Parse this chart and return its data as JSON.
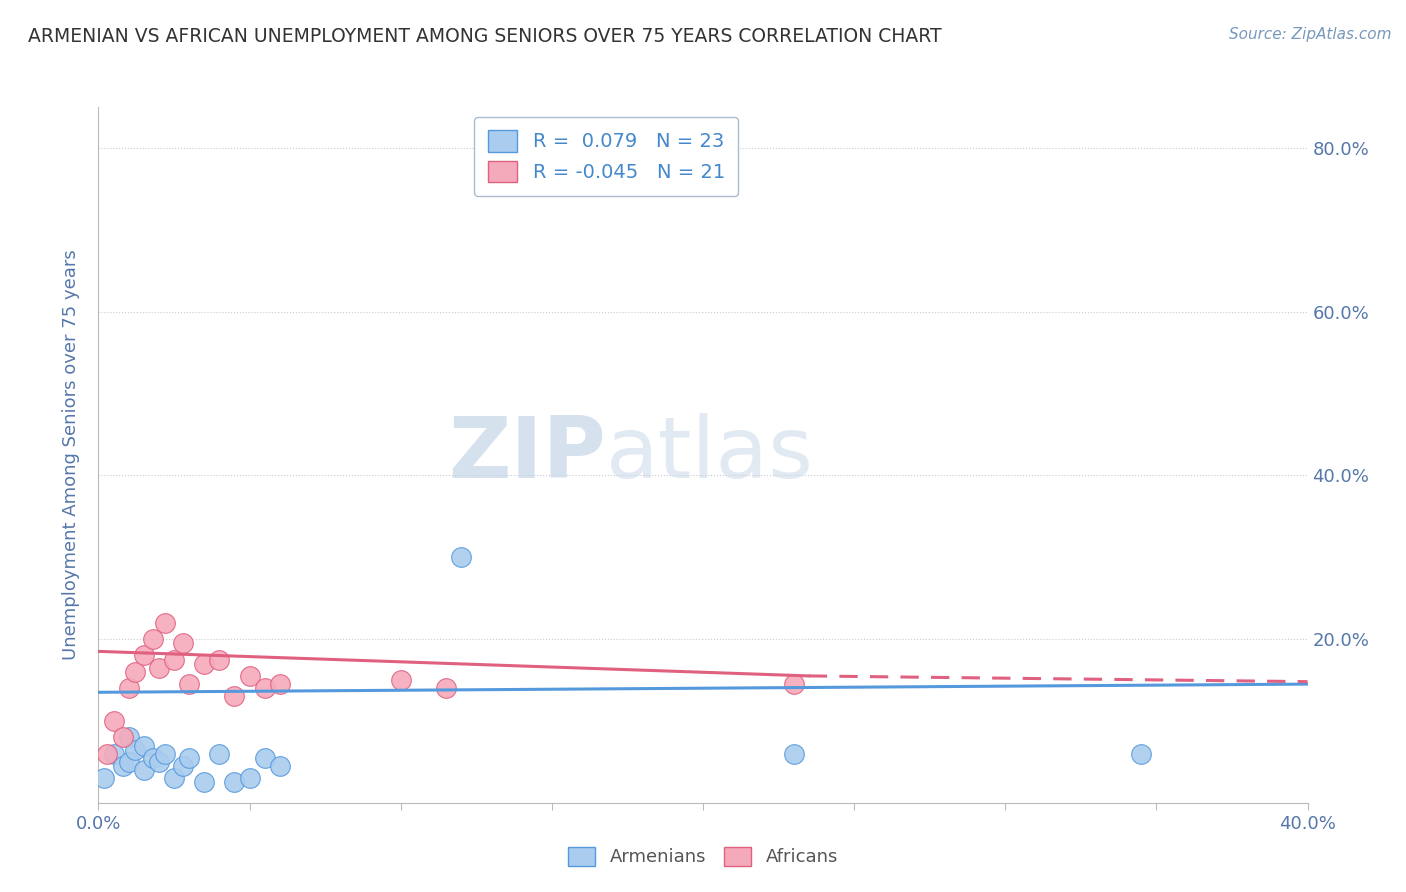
{
  "title": "ARMENIAN VS AFRICAN UNEMPLOYMENT AMONG SENIORS OVER 75 YEARS CORRELATION CHART",
  "source": "Source: ZipAtlas.com",
  "ylabel": "Unemployment Among Seniors over 75 years",
  "xlim": [
    0.0,
    0.4
  ],
  "ylim": [
    0.0,
    0.85
  ],
  "xticks": [
    0.0,
    0.05,
    0.1,
    0.15,
    0.2,
    0.25,
    0.3,
    0.35,
    0.4
  ],
  "yticks": [
    0.0,
    0.2,
    0.4,
    0.6,
    0.8
  ],
  "armenian_R": 0.079,
  "armenian_N": 23,
  "african_R": -0.045,
  "african_N": 21,
  "armenian_color": "#aaccee",
  "armenian_line_color": "#5599dd",
  "african_color": "#f5aabb",
  "african_line_color": "#e06080",
  "watermark_zip": "ZIP",
  "watermark_atlas": "atlas",
  "background_color": "#ffffff",
  "plot_bg_color": "#ffffff",
  "armenian_x": [
    0.002,
    0.005,
    0.008,
    0.01,
    0.01,
    0.012,
    0.015,
    0.015,
    0.018,
    0.02,
    0.022,
    0.025,
    0.028,
    0.03,
    0.035,
    0.04,
    0.045,
    0.05,
    0.055,
    0.06,
    0.12,
    0.23,
    0.345
  ],
  "armenian_y": [
    0.03,
    0.06,
    0.045,
    0.08,
    0.05,
    0.065,
    0.07,
    0.04,
    0.055,
    0.05,
    0.06,
    0.03,
    0.045,
    0.055,
    0.025,
    0.06,
    0.025,
    0.03,
    0.055,
    0.045,
    0.3,
    0.06,
    0.06
  ],
  "african_x": [
    0.003,
    0.005,
    0.008,
    0.01,
    0.012,
    0.015,
    0.018,
    0.02,
    0.022,
    0.025,
    0.028,
    0.03,
    0.035,
    0.04,
    0.045,
    0.05,
    0.055,
    0.06,
    0.1,
    0.115,
    0.23
  ],
  "african_y": [
    0.06,
    0.1,
    0.08,
    0.14,
    0.16,
    0.18,
    0.2,
    0.165,
    0.22,
    0.175,
    0.195,
    0.145,
    0.17,
    0.175,
    0.13,
    0.155,
    0.14,
    0.145,
    0.15,
    0.14,
    0.145
  ]
}
